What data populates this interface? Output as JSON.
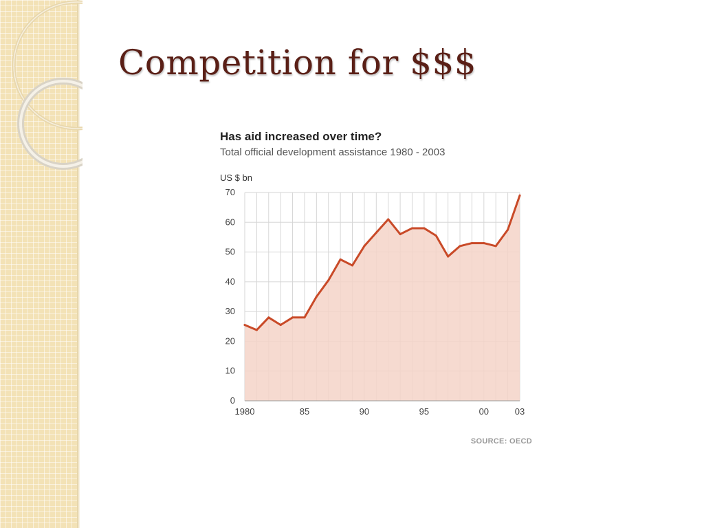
{
  "slide": {
    "title": "Competition for $$$"
  },
  "colors": {
    "title": "#5a1f16",
    "line": "#c94a28",
    "fill": "#f5d3c8",
    "grid": "#d6d6d6",
    "panel": "#f3e2b6"
  },
  "chart_data": {
    "type": "area",
    "title": "Has aid increased over time?",
    "subtitle": "Total official development assistance 1980 - 2003",
    "ylabel": "US $ bn",
    "xlabel": "",
    "source": "SOURCE: OECD",
    "ylim": [
      0,
      70
    ],
    "yticks": [
      0,
      10,
      20,
      30,
      40,
      50,
      60,
      70
    ],
    "xticks": [
      {
        "x": 1980,
        "label": "1980"
      },
      {
        "x": 1985,
        "label": "85"
      },
      {
        "x": 1990,
        "label": "90"
      },
      {
        "x": 1995,
        "label": "95"
      },
      {
        "x": 2000,
        "label": "00"
      },
      {
        "x": 2003,
        "label": "03"
      }
    ],
    "grid": true,
    "x": [
      1980,
      1981,
      1982,
      1983,
      1984,
      1985,
      1986,
      1987,
      1988,
      1989,
      1990,
      1991,
      1992,
      1993,
      1994,
      1995,
      1996,
      1997,
      1998,
      1999,
      2000,
      2001,
      2002,
      2003
    ],
    "series": [
      {
        "values": [
          25.5,
          23.8,
          28.0,
          25.5,
          28.0,
          28.0,
          35.0,
          40.5,
          47.5,
          45.5,
          52.0,
          56.5,
          61.0,
          56.0,
          58.0,
          58.0,
          55.5,
          48.5,
          52.0,
          53.0,
          53.0,
          52.0,
          57.5,
          69.0
        ]
      }
    ]
  }
}
